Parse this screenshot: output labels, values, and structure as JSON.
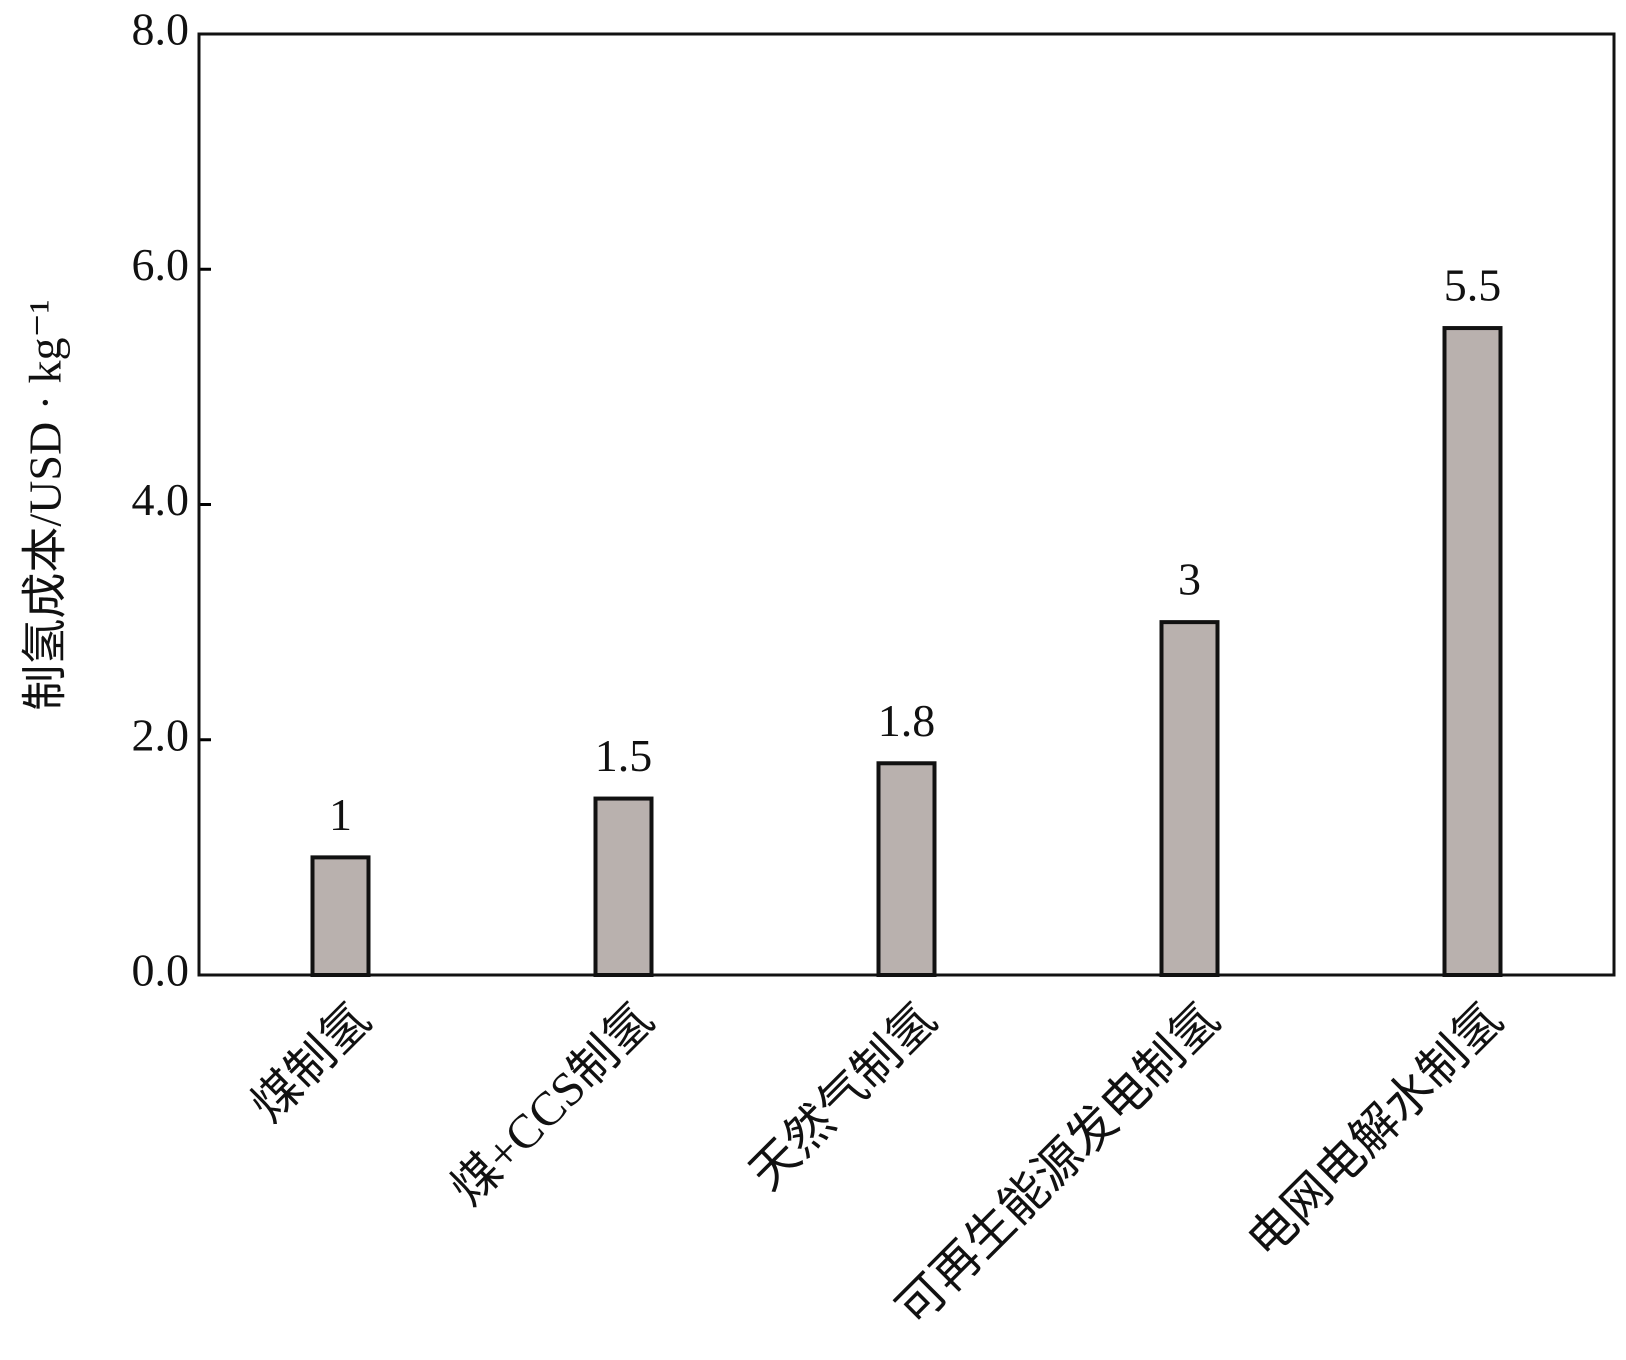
{
  "chart_data": {
    "type": "bar",
    "y_label": "制氢成本/USD · kg⁻¹",
    "categories": [
      "煤制氢",
      "煤+CCS制氢",
      "天然气制氢",
      "可再生能源发电制氢",
      "电网电解水制氢"
    ],
    "values": [
      1,
      1.5,
      1.8,
      3,
      5.5
    ],
    "color": "#b9b1ae",
    "ylim": [
      0,
      8
    ],
    "yticks": [
      {
        "value": 0,
        "label": "0.0"
      },
      {
        "value": 2,
        "label": "2.0"
      },
      {
        "value": 4,
        "label": "4.0"
      },
      {
        "value": 6,
        "label": "6.0"
      },
      {
        "value": 8,
        "label": "8.0"
      }
    ],
    "grid": false
  }
}
